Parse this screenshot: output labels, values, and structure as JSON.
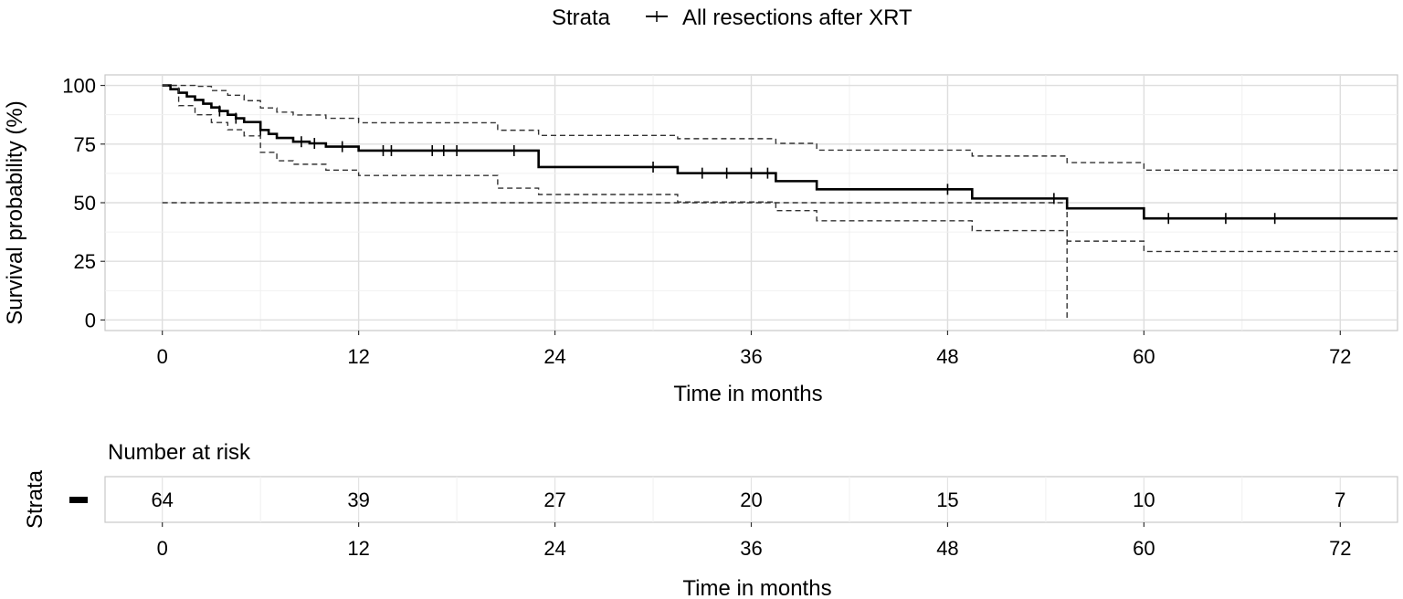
{
  "chart_data": [
    {
      "type": "line",
      "subtype": "kaplan-meier",
      "title": "",
      "xlabel": "Time in months",
      "ylabel": "Survival probability (%)",
      "legend": {
        "title": "Strata",
        "position": "top",
        "entries": [
          "All resections after XRT"
        ]
      },
      "xlim": [
        -3.5,
        75.5
      ],
      "ylim": [
        -4.5,
        104.5
      ],
      "x_ticks": [
        0,
        12,
        24,
        36,
        48,
        60,
        72
      ],
      "x_tick_labels": [
        "0",
        "12",
        "24",
        "36",
        "48",
        "60",
        "72"
      ],
      "y_ticks": [
        0,
        25,
        50,
        75,
        100
      ],
      "y_tick_labels": [
        "0",
        "25",
        "50",
        "75",
        "100"
      ],
      "grid": true,
      "reference_line": {
        "y": 50,
        "style": "dashed"
      },
      "median_drop": {
        "x": 55.3,
        "y_from": 50,
        "y_to": 0,
        "style": "dashed"
      },
      "series": [
        {
          "name": "All resections after XRT",
          "role": "estimate",
          "style": "solid",
          "x": [
            0,
            0.5,
            1,
            1.5,
            2,
            2.5,
            3,
            3.5,
            4,
            4.5,
            5,
            6,
            6.5,
            7,
            8,
            9,
            10,
            12,
            23,
            31.5,
            37.5,
            40,
            49.5,
            55.3,
            60,
            75.5
          ],
          "y": [
            100,
            98.4,
            96.9,
            95.3,
            93.8,
            92.2,
            90.6,
            89.1,
            87.5,
            86.0,
            84.4,
            81.0,
            79.3,
            77.6,
            76.0,
            75.3,
            73.9,
            72.2,
            65.2,
            62.6,
            59.2,
            55.7,
            51.8,
            47.6,
            43.3,
            43.3
          ]
        },
        {
          "name": "Upper 95% CI",
          "role": "upper_ci",
          "style": "dashed",
          "x": [
            0,
            1,
            2,
            3,
            4,
            5,
            6,
            7,
            8,
            10,
            12,
            20.5,
            23,
            31.5,
            37.5,
            40,
            49.5,
            55.3,
            60,
            75.5
          ],
          "y": [
            100,
            100,
            99.6,
            97.8,
            95.8,
            93.5,
            90.4,
            88.6,
            87.4,
            86.0,
            84.1,
            80.9,
            78.7,
            77.3,
            75.3,
            72.4,
            69.9,
            67.1,
            63.9,
            63.9
          ]
        },
        {
          "name": "Lower 95% CI",
          "role": "lower_ci",
          "style": "dashed",
          "x": [
            0,
            1,
            2,
            3,
            4,
            5,
            6,
            7,
            8,
            10,
            12,
            20.5,
            23,
            31.5,
            37.5,
            40,
            49.5,
            55.3,
            60,
            75.5
          ],
          "y": [
            100,
            91.4,
            87.5,
            84.2,
            81.1,
            78.5,
            71.5,
            67.9,
            66.4,
            63.9,
            61.6,
            56.2,
            53.5,
            50.3,
            46.6,
            42.3,
            38.1,
            33.6,
            29.2,
            29.2
          ]
        }
      ],
      "censor_times": [
        3.5,
        4.5,
        6,
        8.5,
        9.3,
        11,
        13.5,
        14,
        16.5,
        17.2,
        18,
        21.5,
        30,
        33,
        34.5,
        36,
        37,
        48,
        54.5,
        61.5,
        65,
        68
      ]
    },
    {
      "type": "table",
      "title": "Number at risk",
      "xlabel": "Time in months",
      "ylabel": "Strata",
      "xlim": [
        -3.5,
        75.5
      ],
      "x_ticks": [
        0,
        12,
        24,
        36,
        48,
        60,
        72
      ],
      "x_tick_labels": [
        "0",
        "12",
        "24",
        "36",
        "48",
        "60",
        "72"
      ],
      "row_label": "-",
      "values": [
        64,
        39,
        27,
        20,
        15,
        10,
        7
      ]
    }
  ]
}
